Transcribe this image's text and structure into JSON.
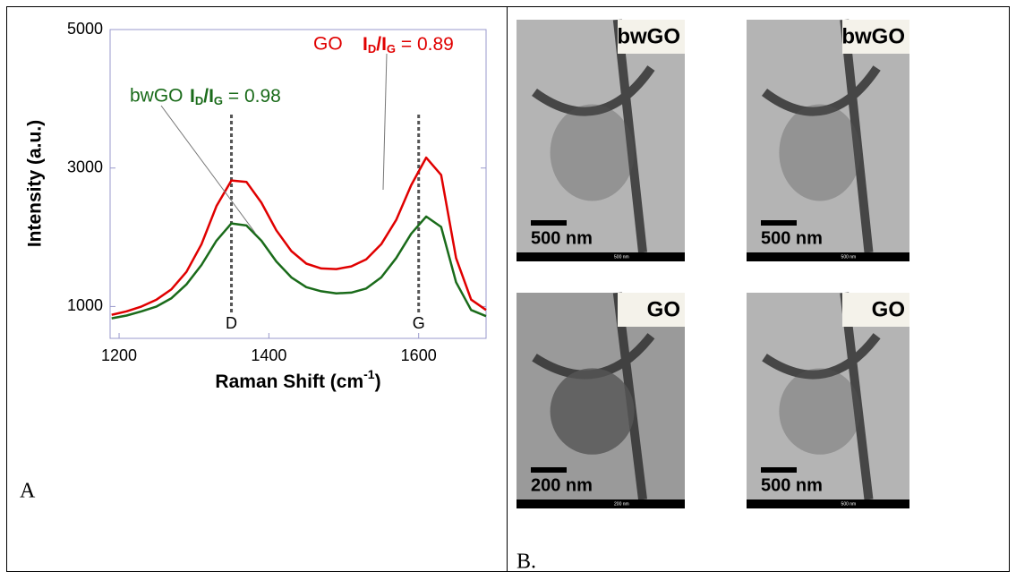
{
  "chart_data": {
    "type": "line",
    "x": [
      1190,
      1210,
      1230,
      1250,
      1270,
      1290,
      1310,
      1330,
      1350,
      1370,
      1390,
      1410,
      1430,
      1450,
      1470,
      1490,
      1510,
      1530,
      1550,
      1570,
      1590,
      1610,
      1630,
      1650,
      1670,
      1690
    ],
    "series": [
      {
        "name": "GO",
        "color": "#e00000",
        "values": [
          880,
          930,
          1000,
          1100,
          1250,
          1500,
          1900,
          2450,
          2820,
          2800,
          2500,
          2100,
          1800,
          1620,
          1550,
          1540,
          1580,
          1680,
          1900,
          2250,
          2750,
          3150,
          2900,
          1700,
          1100,
          950
        ]
      },
      {
        "name": "bwGO",
        "color": "#1a6b1a",
        "values": [
          830,
          870,
          930,
          1000,
          1120,
          1320,
          1600,
          1950,
          2200,
          2170,
          1950,
          1650,
          1420,
          1280,
          1220,
          1190,
          1200,
          1260,
          1420,
          1700,
          2050,
          2300,
          2150,
          1350,
          950,
          860
        ]
      }
    ],
    "xlim": [
      1188,
      1690
    ],
    "ylim": [
      540,
      5000
    ],
    "xticks": [
      1200,
      1400,
      1600
    ],
    "yticks": [
      1000,
      3000,
      5000
    ],
    "y_label": "Intensity (a.u.)",
    "x_label_parts": [
      "Raman Shift (cm",
      "-1",
      ")"
    ],
    "peak_lines": [
      {
        "x": 1350,
        "label": "D"
      },
      {
        "x": 1600,
        "label": "G"
      }
    ],
    "ratios": [
      {
        "parts": [
          "I",
          "D",
          "/I",
          "G",
          " = 0.89"
        ]
      },
      {
        "parts": [
          "I",
          "D",
          "/I",
          "G",
          " = 0.98"
        ]
      }
    ],
    "panel_label": "A"
  },
  "panel_b": {
    "label": "B.",
    "images": [
      {
        "tag": "bwGO",
        "scale": "500 nm",
        "bar_text": "500 nm"
      },
      {
        "tag": "bwGO",
        "scale": "500 nm",
        "bar_text": "500 nm"
      },
      {
        "tag": "GO",
        "scale": "200 nm",
        "bar_text": "200 nm"
      },
      {
        "tag": "GO",
        "scale": "500 nm",
        "bar_text": "500 nm"
      }
    ]
  }
}
